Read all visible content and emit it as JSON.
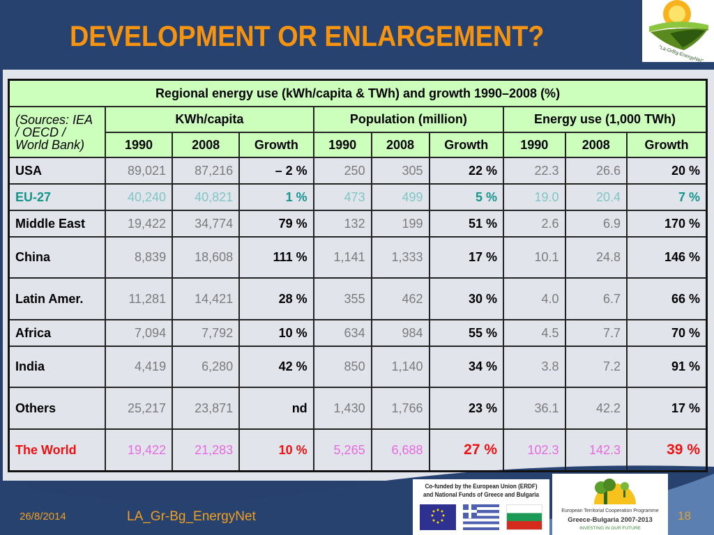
{
  "slide": {
    "title": "DEVELOPMENT OR ENLARGEMENT?",
    "footer_date": "26/8/2014",
    "footer_name": "LA_Gr-Bg_EnergyNet",
    "page_number": "18",
    "logo_text": "\"La-GrBg-EnergyNet\"",
    "colors": {
      "title": "#f7940f",
      "background": "#28426f",
      "header_fill": "#ccffbb",
      "eu_highlight": "#13968c",
      "world_highlight": "#ee1111",
      "world_values": "#e66ae0"
    }
  },
  "table": {
    "caption": "Regional energy use (kWh/capita & TWh) and growth 1990–2008 (%)",
    "sources": "(Sources: IEA / OECD / World Bank)",
    "groups": [
      "KWh/capita",
      "Population (million)",
      "Energy use (1,000 TWh)"
    ],
    "subheaders": [
      "1990",
      "2008",
      "Growth",
      "1990",
      "2008",
      "Growth",
      "1990",
      "2008",
      "Growth"
    ],
    "rows": [
      {
        "region": "USA",
        "values": [
          "89,021",
          "87,216",
          "– 2 %",
          "250",
          "305",
          "22 %",
          "22.3",
          "26.6",
          "20 %"
        ]
      },
      {
        "region": "EU-27",
        "values": [
          "40,240",
          "40,821",
          "1 %",
          "473",
          "499",
          "5 %",
          "19.0",
          "20.4",
          "7 %"
        ]
      },
      {
        "region": "Middle East",
        "values": [
          "19,422",
          "34,774",
          "79 %",
          "132",
          "199",
          "51 %",
          "2.6",
          "6.9",
          "170 %"
        ]
      },
      {
        "region": "China",
        "values": [
          "8,839",
          "18,608",
          "111 %",
          "1,141",
          "1,333",
          "17 %",
          "10.1",
          "24.8",
          "146 %"
        ]
      },
      {
        "region": "Latin Amer.",
        "values": [
          "11,281",
          "14,421",
          "28 %",
          "355",
          "462",
          "30 %",
          "4.0",
          "6.7",
          "66 %"
        ]
      },
      {
        "region": "Africa",
        "values": [
          "7,094",
          "7,792",
          "10 %",
          "634",
          "984",
          "55 %",
          "4.5",
          "7.7",
          "70 %"
        ]
      },
      {
        "region": "India",
        "values": [
          "4,419",
          "6,280",
          "42 %",
          "850",
          "1,140",
          "34 %",
          "3.8",
          "7.2",
          "91 %"
        ]
      },
      {
        "region": "Others",
        "values": [
          "25,217",
          "23,871",
          "nd",
          "1,430",
          "1,766",
          "23 %",
          "36.1",
          "42.2",
          "17 %"
        ]
      },
      {
        "region": "The World",
        "values": [
          "19,422",
          "21,283",
          "10 %",
          "5,265",
          "6,688",
          "27 %",
          "102.3",
          "142.3",
          "39 %"
        ]
      }
    ]
  },
  "funding": {
    "eu_text_line1": "Co-funded by the European Union (ERDF)",
    "eu_text_line2": "and National Funds of Greece and Bulgaria",
    "programme_line1": "European Territorial Cooperation Programme",
    "programme_line2": "Greece-Bulgaria 2007-2013",
    "programme_line3": "INVESTING IN OUR FUTURE"
  }
}
